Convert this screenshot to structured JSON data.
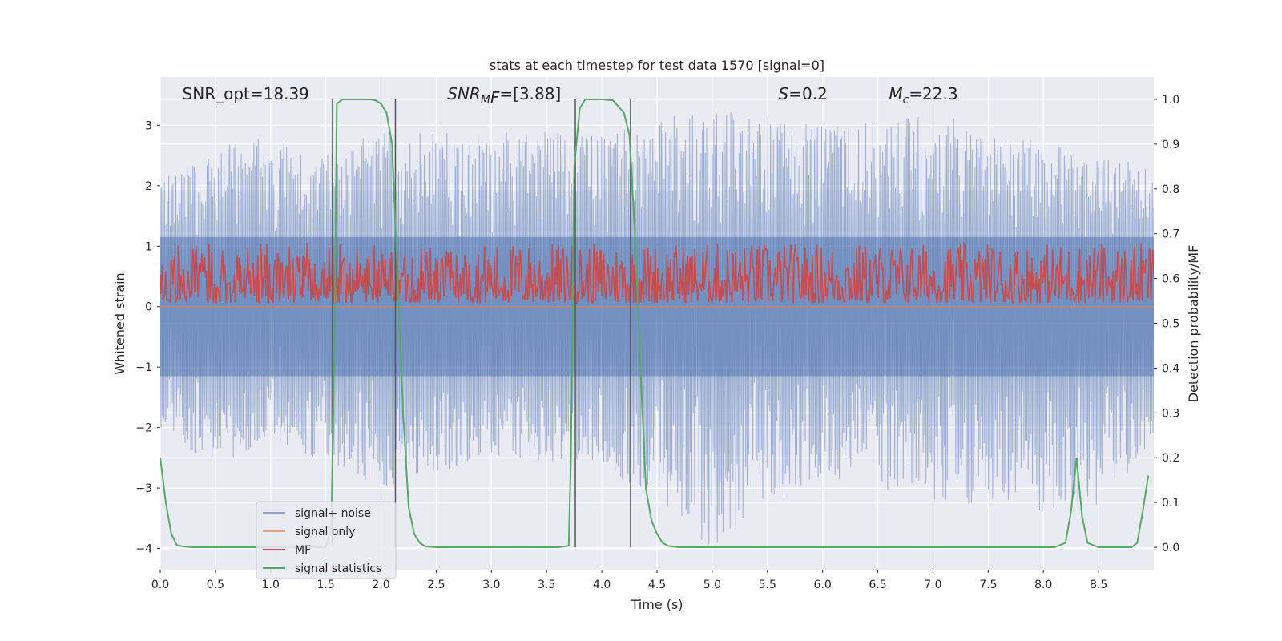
{
  "chart_data": {
    "type": "line",
    "title": "stats at each timestep for test data 1570 [signal=0]",
    "xlabel": "Time (s)",
    "ylabel": "Whitened strain",
    "y2label": "Detection probability/MF",
    "xlim": [
      0,
      9
    ],
    "ylim": [
      -4.35,
      3.8
    ],
    "y2lim": [
      -0.05,
      1.05
    ],
    "xticks": [
      0,
      0.5,
      1.0,
      1.5,
      2.0,
      2.5,
      3.0,
      3.5,
      4.0,
      4.5,
      5.0,
      5.5,
      6.0,
      6.5,
      7.0,
      7.5,
      8.0,
      8.5
    ],
    "xtick_labels": [
      "0.0",
      "0.5",
      "1.0",
      "1.5",
      "2.0",
      "2.5",
      "3.0",
      "3.5",
      "4.0",
      "4.5",
      "5.0",
      "5.5",
      "6.0",
      "6.5",
      "7.0",
      "7.5",
      "8.0",
      "8.5"
    ],
    "yticks": [
      -4,
      -3,
      -2,
      -1,
      0,
      1,
      2,
      3
    ],
    "ytick_labels": [
      "−4",
      "−3",
      "−2",
      "−1",
      "0",
      "1",
      "2",
      "3"
    ],
    "y2ticks": [
      0.0,
      0.1,
      0.2,
      0.3,
      0.4,
      0.5,
      0.6,
      0.7,
      0.8,
      0.9,
      1.0
    ],
    "y2tick_labels": [
      "0.0",
      "0.1",
      "0.2",
      "0.3",
      "0.4",
      "0.5",
      "0.6",
      "0.7",
      "0.8",
      "0.9",
      "1.0"
    ],
    "grid": true,
    "legend_placement": "lower-left",
    "annotations": [
      {
        "prefix": "SNR_opt",
        "sub": "",
        "value": "=18.39",
        "italic": false,
        "x": 0.2
      },
      {
        "prefix": "SNR",
        "sub": "M",
        "value": "F=[3.88]",
        "italic": true,
        "x": 2.6
      },
      {
        "prefix": "S",
        "sub": "",
        "value": "=0.2",
        "italic": true,
        "x": 5.6
      },
      {
        "prefix": "M",
        "sub": "c",
        "value": "=22.3",
        "italic": true,
        "x": 6.6
      }
    ],
    "vertical_lines": [
      1.56,
      2.13,
      3.76,
      4.26
    ],
    "series": [
      {
        "name": "signal+ noise",
        "color": "#4c72b0",
        "opacity": 0.5,
        "axis": "left",
        "kind": "noise",
        "envelope": {
          "upper": [
            [
              0.0,
              2.1
            ],
            [
              0.5,
              2.6
            ],
            [
              1.0,
              2.9
            ],
            [
              1.5,
              2.5
            ],
            [
              2.0,
              3.0
            ],
            [
              3.0,
              2.9
            ],
            [
              4.0,
              2.9
            ],
            [
              5.0,
              3.3
            ],
            [
              6.0,
              3.0
            ],
            [
              7.0,
              3.2
            ],
            [
              7.5,
              3.0
            ],
            [
              8.5,
              2.5
            ],
            [
              9.0,
              2.3
            ]
          ],
          "lower": [
            [
              0.0,
              -2.0
            ],
            [
              0.5,
              -2.7
            ],
            [
              1.0,
              -2.2
            ],
            [
              2.0,
              -3.0
            ],
            [
              3.0,
              -2.5
            ],
            [
              4.0,
              -2.6
            ],
            [
              5.0,
              -4.0
            ],
            [
              6.0,
              -2.8
            ],
            [
              7.0,
              -3.2
            ],
            [
              8.0,
              -3.4
            ],
            [
              8.5,
              -3.3
            ],
            [
              9.0,
              -2.3
            ]
          ]
        }
      },
      {
        "name": "signal only",
        "color": "#dd8452",
        "axis": "left",
        "kind": "flat",
        "value": 0.0
      },
      {
        "name": "MF",
        "color": "#c44e52",
        "axis": "right",
        "kind": "mf",
        "range": [
          0.545,
          0.68
        ]
      },
      {
        "name": "signal statistics",
        "color": "#55a868",
        "axis": "right",
        "kind": "line",
        "x": [
          0.0,
          0.05,
          0.1,
          0.15,
          0.2,
          0.3,
          1.5,
          1.55,
          1.58,
          1.6,
          1.65,
          1.7,
          1.8,
          1.9,
          1.95,
          2.0,
          2.05,
          2.1,
          2.15,
          2.2,
          2.25,
          2.3,
          2.35,
          2.4,
          2.5,
          3.6,
          3.7,
          3.72,
          3.75,
          3.8,
          3.85,
          3.9,
          4.0,
          4.1,
          4.2,
          4.25,
          4.3,
          4.35,
          4.4,
          4.45,
          4.5,
          4.55,
          4.6,
          4.7,
          8.1,
          8.2,
          8.25,
          8.3,
          8.35,
          8.4,
          8.5,
          8.8,
          8.85,
          8.9,
          8.95
        ],
        "y": [
          0.2,
          0.1,
          0.03,
          0.005,
          0.002,
          0.0,
          0.0,
          0.05,
          0.5,
          0.99,
          1.0,
          1.0,
          1.0,
          1.0,
          0.998,
          0.99,
          0.97,
          0.9,
          0.6,
          0.3,
          0.09,
          0.03,
          0.01,
          0.002,
          0.0,
          0.0,
          0.003,
          0.2,
          0.85,
          0.98,
          1.0,
          1.0,
          1.0,
          0.998,
          0.97,
          0.92,
          0.7,
          0.4,
          0.13,
          0.06,
          0.03,
          0.01,
          0.003,
          0.0,
          0.0,
          0.01,
          0.08,
          0.2,
          0.07,
          0.01,
          0.0,
          0.0,
          0.01,
          0.08,
          0.16
        ]
      }
    ]
  }
}
